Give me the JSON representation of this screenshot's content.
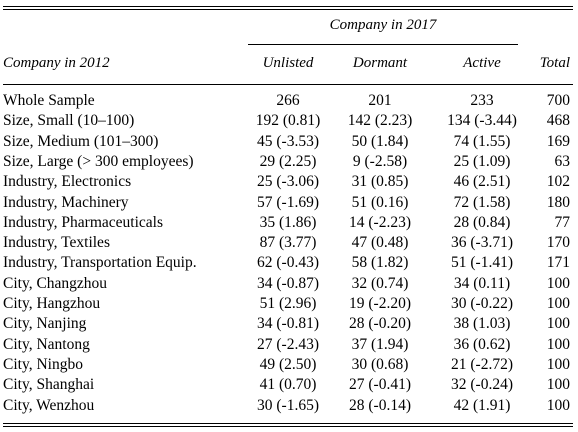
{
  "header": {
    "group_label": "Company in 2017",
    "row_label": "Company in 2012",
    "col_unlisted": "Unlisted",
    "col_dormant": "Dormant",
    "col_active": "Active",
    "col_total": "Total"
  },
  "rows": [
    {
      "label": "Whole Sample",
      "unlisted": "266",
      "dormant": "201",
      "active": "233",
      "total": "700"
    },
    {
      "label": "Size, Small (10–100)",
      "unlisted": "192 (0.81)",
      "dormant": "142 (2.23)",
      "active": "134 (-3.44)",
      "total": "468"
    },
    {
      "label": "Size, Medium (101–300)",
      "unlisted": "45 (-3.53)",
      "dormant": "50 (1.84)",
      "active": "74 (1.55)",
      "total": "169"
    },
    {
      "label": "Size, Large (> 300 employees)",
      "unlisted": "29 (2.25)",
      "dormant": "9 (-2.58)",
      "active": "25 (1.09)",
      "total": "63"
    },
    {
      "label": "Industry, Electronics",
      "unlisted": "25 (-3.06)",
      "dormant": "31 (0.85)",
      "active": "46 (2.51)",
      "total": "102"
    },
    {
      "label": "Industry, Machinery",
      "unlisted": "57 (-1.69)",
      "dormant": "51 (0.16)",
      "active": "72 (1.58)",
      "total": "180"
    },
    {
      "label": "Industry, Pharmaceuticals",
      "unlisted": "35 (1.86)",
      "dormant": "14 (-2.23)",
      "active": "28 (0.84)",
      "total": "77"
    },
    {
      "label": "Industry, Textiles",
      "unlisted": "87 (3.77)",
      "dormant": "47 (0.48)",
      "active": "36 (-3.71)",
      "total": "170"
    },
    {
      "label": "Industry, Transportation Equip.",
      "unlisted": "62 (-0.43)",
      "dormant": "58 (1.82)",
      "active": "51 (-1.41)",
      "total": "171"
    },
    {
      "label": "City, Changzhou",
      "unlisted": "34 (-0.87)",
      "dormant": "32 (0.74)",
      "active": "34 (0.11)",
      "total": "100"
    },
    {
      "label": "City, Hangzhou",
      "unlisted": "51 (2.96)",
      "dormant": "19 (-2.20)",
      "active": "30 (-0.22)",
      "total": "100"
    },
    {
      "label": "City, Nanjing",
      "unlisted": "34 (-0.81)",
      "dormant": "28 (-0.20)",
      "active": "38 (1.03)",
      "total": "100"
    },
    {
      "label": "City, Nantong",
      "unlisted": "27 (-2.43)",
      "dormant": "37 (1.94)",
      "active": "36 (0.62)",
      "total": "100"
    },
    {
      "label": "City, Ningbo",
      "unlisted": "49 (2.50)",
      "dormant": "30 (0.68)",
      "active": "21 (-2.72)",
      "total": "100"
    },
    {
      "label": "City, Shanghai",
      "unlisted": "41 (0.70)",
      "dormant": "27 (-0.41)",
      "active": "32 (-0.24)",
      "total": "100"
    },
    {
      "label": "City, Wenzhou",
      "unlisted": "30 (-1.65)",
      "dormant": "28 (-0.14)",
      "active": "42 (1.91)",
      "total": "100"
    }
  ]
}
